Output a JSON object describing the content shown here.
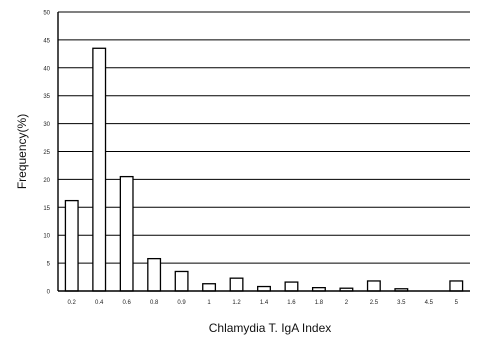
{
  "chart_data": {
    "type": "bar",
    "title": "",
    "xlabel": "Chlamydia T. IgA Index",
    "ylabel": "Frequency(%)",
    "ylim": [
      0,
      50
    ],
    "yticks": [
      "0",
      "5",
      "10",
      "15",
      "20",
      "25",
      "30",
      "35",
      "40",
      "45",
      "50"
    ],
    "grid": true,
    "categories": [
      "0.2",
      "0.4",
      "0.6",
      "0.8",
      "0.9",
      "1",
      "1.2",
      "1.4",
      "1.6",
      "1.8",
      "2",
      "2.5",
      "3.5",
      "4.5",
      "5"
    ],
    "values": [
      16.2,
      43.5,
      20.5,
      5.8,
      3.5,
      1.3,
      2.3,
      0.8,
      1.6,
      0.6,
      0.5,
      1.8,
      0.4,
      0,
      1.8
    ],
    "bar_fill": "#ffffff",
    "bar_stroke": "#000000",
    "grid_color": "#000000"
  }
}
